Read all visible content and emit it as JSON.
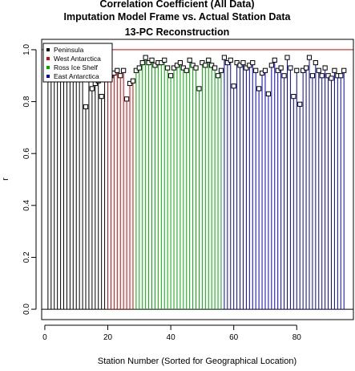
{
  "chart_data": {
    "type": "bar",
    "title_lines": [
      "Correlation Coefficient (All Data)",
      "Imputation Model Frame vs. Actual Station Data",
      "13-PC Reconstruction"
    ],
    "xlabel": "Station Number (Sorted for Geographical Location)",
    "ylabel": "r",
    "xlim": [
      -1,
      98
    ],
    "ylim": [
      -0.04,
      1.04
    ],
    "x_ticks": [
      "0",
      "20",
      "40",
      "60",
      "80"
    ],
    "y_ticks": [
      "0.0",
      "0.2",
      "0.4",
      "0.6",
      "0.8",
      "1.0"
    ],
    "reference_lines": [
      {
        "y": 1.0,
        "color": "#dd0000"
      },
      {
        "y": 0.0,
        "color": "#000000"
      }
    ],
    "legend": {
      "placement": "top-left",
      "entries": [
        {
          "label": "Peninsula",
          "color": "#000000"
        },
        {
          "label": "West Antarctica",
          "color": "#dd0000"
        },
        {
          "label": "Ross Ice Shelf",
          "color": "#00aa00"
        },
        {
          "label": "East Antarctica",
          "color": "#0000cc"
        }
      ]
    },
    "series": [
      {
        "name": "Peninsula",
        "color": "#000000",
        "x": [
          1,
          2,
          3,
          4,
          5,
          6,
          7,
          8,
          9,
          10,
          11,
          12,
          13,
          14,
          15,
          16,
          17,
          18,
          19
        ],
        "values": [
          0.96,
          0.96,
          0.95,
          0.94,
          0.96,
          0.92,
          0.96,
          0.93,
          0.92,
          0.96,
          0.95,
          0.9,
          0.78,
          0.9,
          0.85,
          0.87,
          0.88,
          0.82,
          0.89
        ]
      },
      {
        "name": "West Antarctica",
        "color": "#dd0000",
        "x": [
          20,
          21,
          22,
          23,
          24,
          25,
          26,
          27,
          28
        ],
        "values": [
          0.89,
          0.9,
          0.91,
          0.92,
          0.9,
          0.92,
          0.81,
          0.87,
          0.88
        ]
      },
      {
        "name": "Ross Ice Shelf",
        "color": "#00aa00",
        "x": [
          29,
          30,
          31,
          32,
          33,
          34,
          35,
          36,
          37,
          38,
          39,
          40,
          41,
          42,
          43,
          44,
          45,
          46,
          47,
          48,
          49,
          50,
          51,
          52,
          53,
          54,
          55,
          56
        ],
        "values": [
          0.92,
          0.93,
          0.95,
          0.97,
          0.95,
          0.96,
          0.94,
          0.95,
          0.95,
          0.96,
          0.93,
          0.9,
          0.93,
          0.94,
          0.95,
          0.93,
          0.92,
          0.96,
          0.94,
          0.93,
          0.85,
          0.95,
          0.94,
          0.96,
          0.94,
          0.93,
          0.9,
          0.92
        ]
      },
      {
        "name": "East Antarctica",
        "color": "#0000cc",
        "x": [
          57,
          58,
          59,
          60,
          61,
          62,
          63,
          64,
          65,
          66,
          67,
          68,
          69,
          70,
          71,
          72,
          73,
          74,
          75,
          76,
          77,
          78,
          79,
          80,
          81,
          82,
          83,
          84,
          85,
          86,
          87,
          88,
          89,
          90,
          91,
          92,
          93,
          94,
          95
        ],
        "values": [
          0.97,
          0.95,
          0.96,
          0.86,
          0.95,
          0.94,
          0.95,
          0.93,
          0.94,
          0.95,
          0.92,
          0.85,
          0.91,
          0.92,
          0.83,
          0.94,
          0.96,
          0.92,
          0.93,
          0.9,
          0.97,
          0.93,
          0.82,
          0.92,
          0.79,
          0.92,
          0.93,
          0.97,
          0.9,
          0.95,
          0.92,
          0.9,
          0.93,
          0.9,
          0.89,
          0.92,
          0.9,
          0.9,
          0.92
        ]
      }
    ]
  }
}
